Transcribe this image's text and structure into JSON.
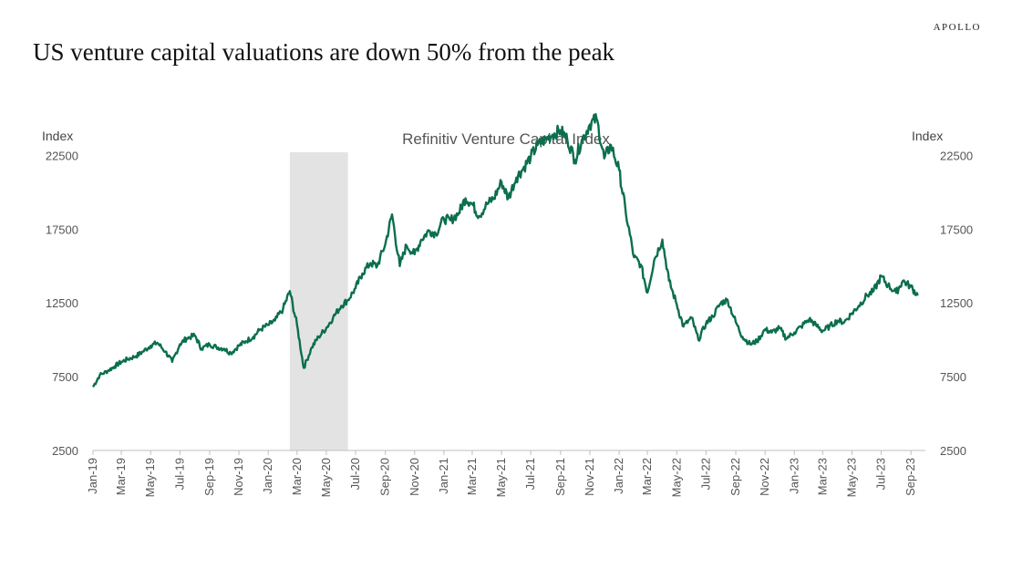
{
  "brand": "APOLLO",
  "headline": "US venture capital valuations are down 50% from the peak",
  "chart_data": {
    "type": "line",
    "title": "Refinitiv Venture Capital Index",
    "ylabel_left": "Index",
    "ylabel_right": "Index",
    "ylim": [
      2500,
      25000
    ],
    "yticks": [
      2500,
      7500,
      12500,
      17500,
      22500
    ],
    "grid": false,
    "xlim": [
      "2019-01",
      "2023-10"
    ],
    "xtick_labels": [
      "Jan-19",
      "Mar-19",
      "May-19",
      "Jul-19",
      "Sep-19",
      "Nov-19",
      "Jan-20",
      "Mar-20",
      "May-20",
      "Jul-20",
      "Sep-20",
      "Nov-20",
      "Jan-21",
      "Mar-21",
      "May-21",
      "Jul-21",
      "Sep-21",
      "Nov-21",
      "Jan-22",
      "Mar-22",
      "May-22",
      "Jul-22",
      "Sep-22",
      "Nov-22",
      "Jan-23",
      "Mar-23",
      "May-23",
      "Jul-23",
      "Sep-23"
    ],
    "shaded_period": {
      "start": "2020-02-15",
      "end": "2020-06-15",
      "color": "#e3e3e3"
    },
    "series": [
      {
        "color": "#0b6e4f",
        "points": [
          [
            "2019-01-01",
            6800
          ],
          [
            "2019-01-15",
            7600
          ],
          [
            "2019-02-01",
            7900
          ],
          [
            "2019-02-15",
            8200
          ],
          [
            "2019-03-01",
            8500
          ],
          [
            "2019-03-15",
            8700
          ],
          [
            "2019-04-01",
            8900
          ],
          [
            "2019-04-15",
            9200
          ],
          [
            "2019-05-01",
            9600
          ],
          [
            "2019-05-15",
            9800
          ],
          [
            "2019-06-01",
            9200
          ],
          [
            "2019-06-15",
            8500
          ],
          [
            "2019-07-01",
            9700
          ],
          [
            "2019-07-15",
            10100
          ],
          [
            "2019-08-01",
            10300
          ],
          [
            "2019-08-15",
            9400
          ],
          [
            "2019-09-01",
            9700
          ],
          [
            "2019-09-15",
            9500
          ],
          [
            "2019-10-01",
            9400
          ],
          [
            "2019-10-15",
            9100
          ],
          [
            "2019-11-01",
            9600
          ],
          [
            "2019-11-15",
            9900
          ],
          [
            "2019-12-01",
            10200
          ],
          [
            "2019-12-15",
            10700
          ],
          [
            "2020-01-01",
            11000
          ],
          [
            "2020-01-15",
            11300
          ],
          [
            "2020-02-01",
            12100
          ],
          [
            "2020-02-15",
            13300
          ],
          [
            "2020-03-01",
            11000
          ],
          [
            "2020-03-15",
            8100
          ],
          [
            "2020-04-01",
            9500
          ],
          [
            "2020-04-15",
            10200
          ],
          [
            "2020-05-01",
            10800
          ],
          [
            "2020-05-15",
            11500
          ],
          [
            "2020-06-01",
            12300
          ],
          [
            "2020-06-15",
            12700
          ],
          [
            "2020-07-01",
            13500
          ],
          [
            "2020-07-15",
            14500
          ],
          [
            "2020-08-01",
            15200
          ],
          [
            "2020-08-15",
            15000
          ],
          [
            "2020-09-01",
            16500
          ],
          [
            "2020-09-15",
            18500
          ],
          [
            "2020-10-01",
            15000
          ],
          [
            "2020-10-15",
            16400
          ],
          [
            "2020-11-01",
            15800
          ],
          [
            "2020-11-15",
            16800
          ],
          [
            "2020-12-01",
            17400
          ],
          [
            "2020-12-15",
            17200
          ],
          [
            "2021-01-01",
            18200
          ],
          [
            "2021-01-15",
            18100
          ],
          [
            "2021-02-01",
            18600
          ],
          [
            "2021-02-15",
            19600
          ],
          [
            "2021-03-01",
            19200
          ],
          [
            "2021-03-15",
            18400
          ],
          [
            "2021-04-01",
            19200
          ],
          [
            "2021-04-15",
            19600
          ],
          [
            "2021-05-01",
            20700
          ],
          [
            "2021-05-15",
            19600
          ],
          [
            "2021-06-01",
            21000
          ],
          [
            "2021-06-15",
            21600
          ],
          [
            "2021-07-01",
            22400
          ],
          [
            "2021-07-15",
            23200
          ],
          [
            "2021-08-01",
            23600
          ],
          [
            "2021-08-15",
            23900
          ],
          [
            "2021-09-01",
            24200
          ],
          [
            "2021-09-15",
            23600
          ],
          [
            "2021-10-01",
            22200
          ],
          [
            "2021-10-15",
            23500
          ],
          [
            "2021-11-01",
            24600
          ],
          [
            "2021-11-15",
            25000
          ],
          [
            "2021-12-01",
            22300
          ],
          [
            "2021-12-15",
            23200
          ],
          [
            "2022-01-01",
            21500
          ],
          [
            "2022-01-15",
            18600
          ],
          [
            "2022-02-01",
            15600
          ],
          [
            "2022-02-15",
            15100
          ],
          [
            "2022-03-01",
            13200
          ],
          [
            "2022-03-15",
            15400
          ],
          [
            "2022-04-01",
            16800
          ],
          [
            "2022-04-15",
            14000
          ],
          [
            "2022-05-01",
            12400
          ],
          [
            "2022-05-15",
            10900
          ],
          [
            "2022-06-01",
            11500
          ],
          [
            "2022-06-15",
            10000
          ],
          [
            "2022-07-01",
            11100
          ],
          [
            "2022-07-15",
            11600
          ],
          [
            "2022-08-01",
            12500
          ],
          [
            "2022-08-15",
            12700
          ],
          [
            "2022-09-01",
            11200
          ],
          [
            "2022-09-15",
            10200
          ],
          [
            "2022-10-01",
            9700
          ],
          [
            "2022-10-15",
            9900
          ],
          [
            "2022-11-01",
            10700
          ],
          [
            "2022-11-15",
            10500
          ],
          [
            "2022-12-01",
            10800
          ],
          [
            "2022-12-15",
            10100
          ],
          [
            "2023-01-01",
            10500
          ],
          [
            "2023-01-15",
            10900
          ],
          [
            "2023-02-01",
            11400
          ],
          [
            "2023-02-15",
            11000
          ],
          [
            "2023-03-01",
            10600
          ],
          [
            "2023-03-15",
            10900
          ],
          [
            "2023-04-01",
            11300
          ],
          [
            "2023-04-15",
            11200
          ],
          [
            "2023-05-01",
            11800
          ],
          [
            "2023-05-15",
            12300
          ],
          [
            "2023-06-01",
            13000
          ],
          [
            "2023-06-15",
            13300
          ],
          [
            "2023-07-01",
            14300
          ],
          [
            "2023-07-15",
            13700
          ],
          [
            "2023-08-01",
            13200
          ],
          [
            "2023-08-15",
            14000
          ],
          [
            "2023-09-01",
            13600
          ],
          [
            "2023-09-15",
            13000
          ]
        ]
      }
    ]
  }
}
